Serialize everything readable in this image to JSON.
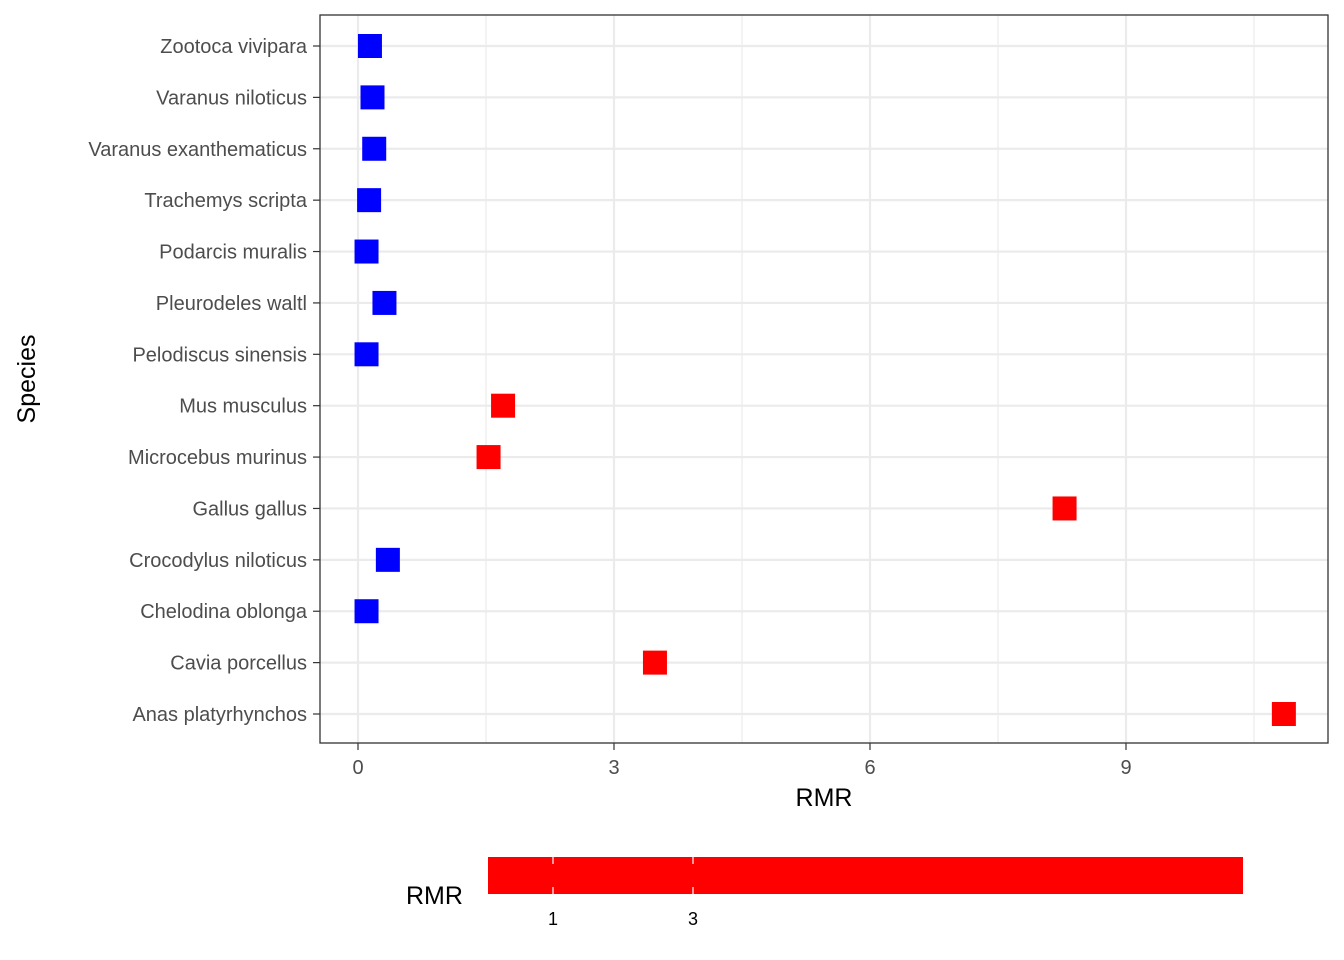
{
  "chart_data": {
    "type": "scatter",
    "xlabel": "RMR",
    "ylabel": "Species",
    "xlim": [
      -0.45,
      11.35
    ],
    "x_ticks": [
      0,
      3,
      6,
      9
    ],
    "x_minor": [
      1.5,
      4.5,
      7.5,
      10.5
    ],
    "grid": true,
    "colors": {
      "low": "#0000ff",
      "high": "#ff0000"
    },
    "categories": [
      "Anas platyrhynchos",
      "Cavia porcellus",
      "Chelodina oblonga",
      "Crocodylus niloticus",
      "Gallus gallus",
      "Microcebus murinus",
      "Mus musculus",
      "Pelodiscus sinensis",
      "Pleurodeles waltl",
      "Podarcis muralis",
      "Trachemys scripta",
      "Varanus exanthematicus",
      "Varanus niloticus",
      "Zootoca vivipara"
    ],
    "points": [
      {
        "species": "Anas platyrhynchos",
        "x": 10.85,
        "group": "high"
      },
      {
        "species": "Cavia porcellus",
        "x": 3.48,
        "group": "high"
      },
      {
        "species": "Chelodina oblonga",
        "x": 0.1,
        "group": "low"
      },
      {
        "species": "Crocodylus niloticus",
        "x": 0.35,
        "group": "low"
      },
      {
        "species": "Gallus gallus",
        "x": 8.28,
        "group": "high"
      },
      {
        "species": "Microcebus murinus",
        "x": 1.53,
        "group": "high"
      },
      {
        "species": "Mus musculus",
        "x": 1.7,
        "group": "high"
      },
      {
        "species": "Pelodiscus sinensis",
        "x": 0.1,
        "group": "low"
      },
      {
        "species": "Pleurodeles waltl",
        "x": 0.31,
        "group": "low"
      },
      {
        "species": "Podarcis muralis",
        "x": 0.1,
        "group": "low"
      },
      {
        "species": "Trachemys scripta",
        "x": 0.13,
        "group": "low"
      },
      {
        "species": "Varanus exanthematicus",
        "x": 0.19,
        "group": "low"
      },
      {
        "species": "Varanus niloticus",
        "x": 0.17,
        "group": "low"
      },
      {
        "species": "Zootoca vivipara",
        "x": 0.14,
        "group": "low"
      }
    ],
    "legend": {
      "title": "RMR",
      "placement": "bottom",
      "type": "colorbar",
      "ticks": [
        "1",
        "3"
      ],
      "color": "#ff0000"
    }
  }
}
